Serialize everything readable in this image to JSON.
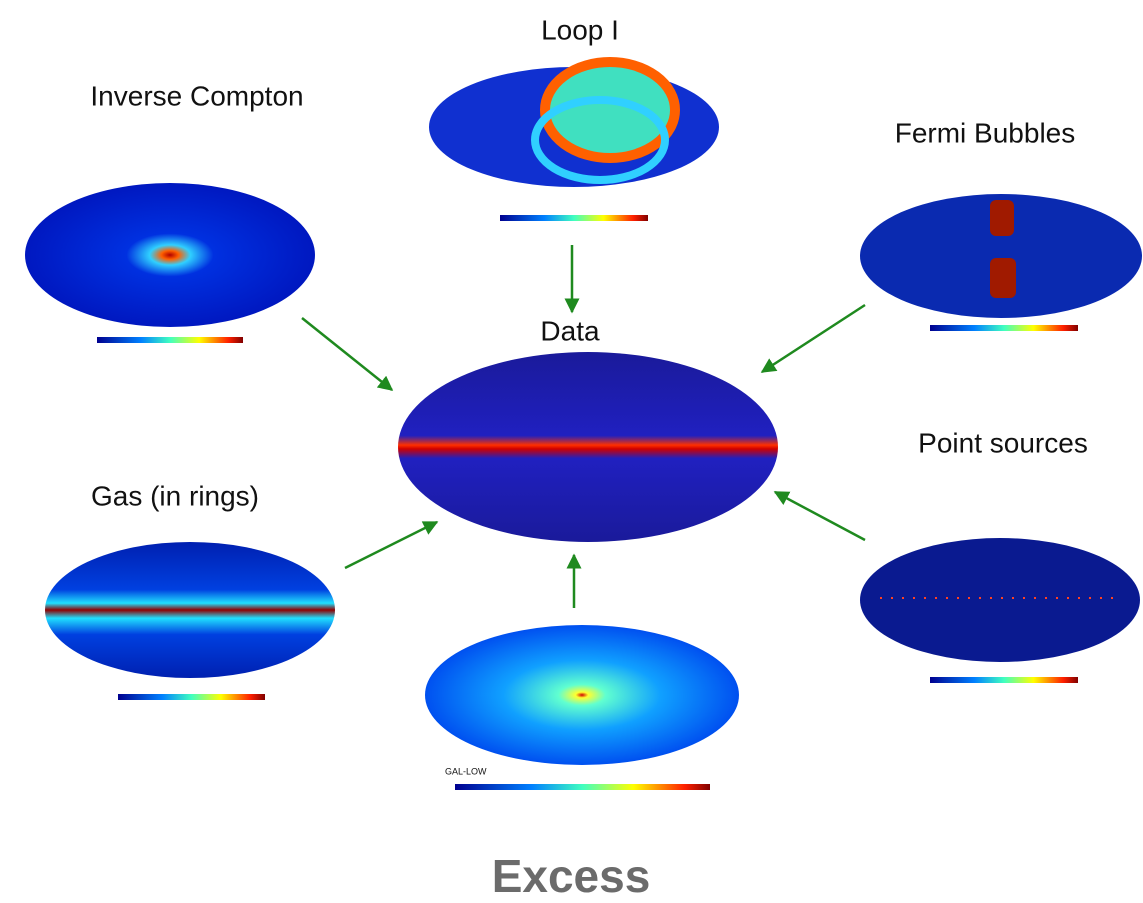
{
  "labels": {
    "loop": "Loop I",
    "inverse_compton": "Inverse Compton",
    "fermi_bubbles": "Fermi Bubbles",
    "data": "Data",
    "point_sources": "Point sources",
    "gas": "Gas (in rings)",
    "template_tag": "GAL-LOW",
    "excess": "Excess"
  }
}
